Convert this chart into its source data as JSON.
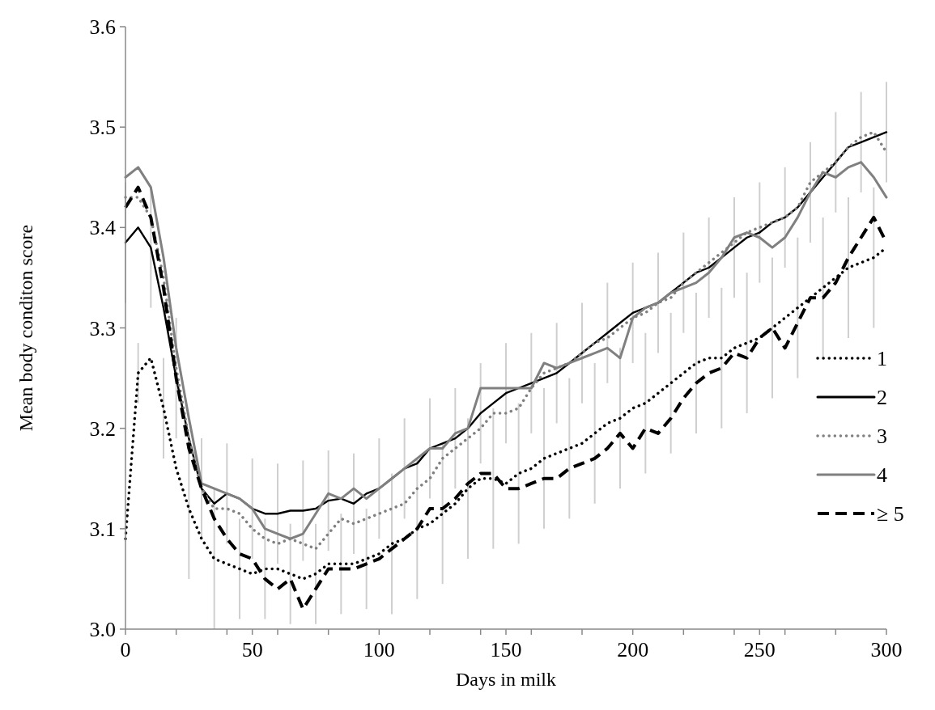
{
  "chart_data": {
    "type": "line",
    "xlabel": "Days in milk",
    "ylabel": "Mean body conditon score",
    "x": [
      0,
      5,
      10,
      15,
      20,
      25,
      30,
      35,
      40,
      45,
      50,
      55,
      60,
      65,
      70,
      75,
      80,
      85,
      90,
      95,
      100,
      105,
      110,
      115,
      120,
      125,
      130,
      135,
      140,
      145,
      150,
      155,
      160,
      165,
      170,
      175,
      180,
      185,
      190,
      195,
      200,
      205,
      210,
      215,
      220,
      225,
      230,
      235,
      240,
      245,
      250,
      255,
      260,
      265,
      270,
      275,
      280,
      285,
      290,
      295,
      300
    ],
    "xlim": [
      0,
      300
    ],
    "xticks": [
      0,
      {
        "value": 20,
        "label": null
      },
      {
        "value": 40,
        "label": null
      },
      50,
      {
        "value": 60,
        "label": null
      },
      {
        "value": 80,
        "label": null
      },
      100,
      {
        "value": 120,
        "label": null
      },
      {
        "value": 140,
        "label": null
      },
      150,
      {
        "value": 160,
        "label": null
      },
      {
        "value": 180,
        "label": null
      },
      200,
      {
        "value": 220,
        "label": null
      },
      {
        "value": 240,
        "label": null
      },
      250,
      {
        "value": 260,
        "label": null
      },
      {
        "value": 280,
        "label": null
      },
      300
    ],
    "ylim": [
      3.0,
      3.6
    ],
    "yticks": [
      {
        "value": 3.0,
        "label": "3.0"
      },
      3.1,
      3.2,
      3.3,
      3.4,
      3.5,
      3.6
    ],
    "grid": false,
    "legend": "right",
    "series": [
      {
        "name": "1",
        "color": "#000000",
        "line_style": "dotted",
        "values": [
          3.09,
          3.255,
          3.27,
          3.22,
          3.16,
          3.12,
          3.09,
          3.07,
          3.065,
          3.06,
          3.055,
          3.06,
          3.06,
          3.055,
          3.05,
          3.055,
          3.065,
          3.065,
          3.065,
          3.07,
          3.075,
          3.085,
          3.09,
          3.1,
          3.105,
          3.115,
          3.125,
          3.14,
          3.15,
          3.15,
          3.145,
          3.155,
          3.16,
          3.17,
          3.175,
          3.18,
          3.185,
          3.195,
          3.205,
          3.21,
          3.22,
          3.225,
          3.235,
          3.245,
          3.255,
          3.265,
          3.27,
          3.27,
          3.28,
          3.285,
          3.29,
          3.3,
          3.31,
          3.32,
          3.33,
          3.34,
          3.35,
          3.36,
          3.365,
          3.37,
          3.38
        ],
        "errors": [
          null,
          0.03,
          null,
          0.05,
          null,
          0.07,
          null,
          0.07,
          null,
          0.05,
          null,
          0.05,
          null,
          0.05,
          null,
          0.05,
          null,
          0.05,
          null,
          0.05,
          null,
          0.07,
          null,
          0.07,
          null,
          0.07,
          null,
          0.07,
          null,
          0.07,
          null,
          0.07,
          null,
          0.07,
          null,
          0.07,
          null,
          0.07,
          null,
          0.07,
          null,
          0.07,
          null,
          0.07,
          null,
          0.07,
          null,
          0.07,
          null,
          0.07,
          null,
          0.07,
          null,
          0.07,
          null,
          0.07,
          null,
          0.07,
          null,
          0.07,
          null
        ]
      },
      {
        "name": "2",
        "color": "#000000",
        "line_style": "solid",
        "values": [
          3.385,
          3.4,
          3.38,
          3.32,
          3.25,
          3.19,
          3.14,
          3.125,
          3.135,
          3.13,
          3.12,
          3.115,
          3.115,
          3.118,
          3.118,
          3.12,
          3.128,
          3.13,
          3.125,
          3.135,
          3.14,
          3.15,
          3.16,
          3.165,
          3.18,
          3.185,
          3.19,
          3.2,
          3.215,
          3.225,
          3.235,
          3.24,
          3.245,
          3.25,
          3.255,
          3.265,
          3.275,
          3.285,
          3.295,
          3.305,
          3.315,
          3.32,
          3.325,
          3.335,
          3.345,
          3.355,
          3.36,
          3.37,
          3.38,
          3.39,
          3.395,
          3.405,
          3.41,
          3.42,
          3.435,
          3.45,
          3.465,
          3.48,
          3.485,
          3.49,
          3.495
        ],
        "errors": [
          0.06,
          null,
          0.06,
          null,
          0.06,
          null,
          0.05,
          null,
          0.05,
          null,
          0.05,
          null,
          0.05,
          null,
          0.05,
          null,
          0.05,
          null,
          0.05,
          null,
          0.05,
          null,
          0.05,
          null,
          0.05,
          null,
          0.05,
          null,
          0.05,
          null,
          0.05,
          null,
          0.05,
          null,
          0.05,
          null,
          0.05,
          null,
          0.05,
          null,
          0.05,
          null,
          0.05,
          null,
          0.05,
          null,
          0.05,
          null,
          0.05,
          null,
          0.05,
          null,
          0.05,
          null,
          0.05,
          null,
          0.05,
          null,
          0.05,
          null,
          0.05
        ]
      },
      {
        "name": "3",
        "color": "#808080",
        "line_style": "dotted",
        "values": [
          3.43,
          3.43,
          3.41,
          3.35,
          3.26,
          3.19,
          3.14,
          3.12,
          3.12,
          3.115,
          3.1,
          3.09,
          3.085,
          3.09,
          3.085,
          3.08,
          3.095,
          3.11,
          3.105,
          3.11,
          3.115,
          3.12,
          3.125,
          3.14,
          3.15,
          3.17,
          3.18,
          3.19,
          3.2,
          3.215,
          3.215,
          3.22,
          3.24,
          3.255,
          3.26,
          3.265,
          3.275,
          3.285,
          3.29,
          3.3,
          3.31,
          3.315,
          3.325,
          3.33,
          3.345,
          3.355,
          3.365,
          3.375,
          3.385,
          3.395,
          3.4,
          3.405,
          3.41,
          3.42,
          3.445,
          3.455,
          3.465,
          3.48,
          3.49,
          3.495,
          3.475
        ]
      },
      {
        "name": "4",
        "color": "#808080",
        "line_style": "solid",
        "values": [
          3.45,
          3.46,
          3.44,
          3.37,
          3.28,
          3.21,
          3.145,
          3.14,
          3.135,
          3.13,
          3.12,
          3.1,
          3.095,
          3.09,
          3.095,
          3.115,
          3.135,
          3.13,
          3.14,
          3.13,
          3.14,
          3.15,
          3.16,
          3.17,
          3.18,
          3.18,
          3.195,
          3.2,
          3.24,
          3.24,
          3.24,
          3.24,
          3.24,
          3.265,
          3.26,
          3.265,
          3.27,
          3.275,
          3.28,
          3.27,
          3.31,
          3.32,
          3.325,
          3.335,
          3.34,
          3.345,
          3.355,
          3.37,
          3.39,
          3.395,
          3.39,
          3.38,
          3.39,
          3.41,
          3.435,
          3.455,
          3.45,
          3.46,
          3.465,
          3.45,
          3.43
        ]
      },
      {
        "name": "≥ 5",
        "color": "#000000",
        "line_style": "dashed",
        "values": [
          3.42,
          3.44,
          3.41,
          3.34,
          3.25,
          3.18,
          3.14,
          3.11,
          3.09,
          3.075,
          3.07,
          3.05,
          3.04,
          3.05,
          3.02,
          3.04,
          3.06,
          3.06,
          3.06,
          3.065,
          3.07,
          3.08,
          3.09,
          3.1,
          3.12,
          3.12,
          3.13,
          3.145,
          3.155,
          3.155,
          3.14,
          3.14,
          3.145,
          3.15,
          3.15,
          3.16,
          3.165,
          3.17,
          3.18,
          3.195,
          3.18,
          3.2,
          3.195,
          3.21,
          3.23,
          3.245,
          3.255,
          3.26,
          3.275,
          3.27,
          3.29,
          3.3,
          3.28,
          3.305,
          3.33,
          3.33,
          3.345,
          3.37,
          3.39,
          3.41,
          3.385
        ]
      }
    ]
  }
}
